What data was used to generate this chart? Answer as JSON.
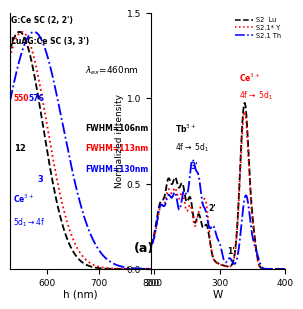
{
  "left_panel": {
    "title1": "G:Ce SC (2, 2')",
    "title2": "LuAG:Ce SC (3, 3')",
    "lambda_ex": "$\\lambda_{ex}$=460nm",
    "xlabel": "h (nm)",
    "xlim": [
      530,
      800
    ],
    "ylim": [
      0,
      1.08
    ],
    "xticks": [
      600,
      700,
      800
    ],
    "peak_black": 548,
    "peak_red": 553,
    "peak_blue": 576,
    "fwhm_black": 106,
    "fwhm_red": 113,
    "fwhm_blue": 130,
    "panel_label": "(a)"
  },
  "right_panel": {
    "ylabel": "Normalized intensity",
    "xlabel": "W",
    "xlim": [
      195,
      400
    ],
    "ylim": [
      0.0,
      1.5
    ],
    "yticks": [
      0.0,
      0.5,
      1.0,
      1.5
    ],
    "xticks": [
      200,
      300,
      400
    ],
    "legend_labels": [
      "S2  Lu",
      "S2.1* Y",
      "S2.1 Th"
    ]
  },
  "bg_color": "white"
}
